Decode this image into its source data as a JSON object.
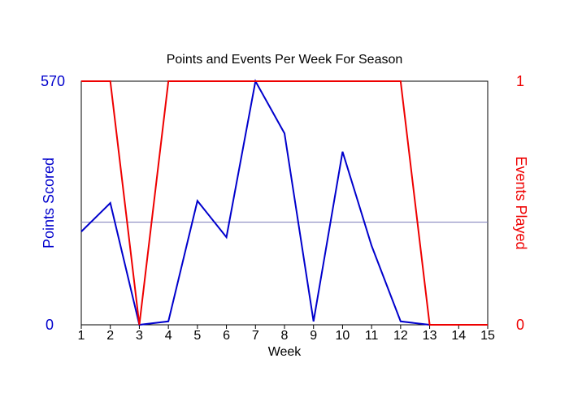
{
  "chart_data": {
    "type": "line",
    "title": "Points and Events Per Week For Season",
    "xlabel": "Week",
    "x": [
      1,
      2,
      3,
      4,
      5,
      6,
      7,
      8,
      9,
      10,
      11,
      12,
      13,
      14,
      15
    ],
    "xlim": [
      1,
      15
    ],
    "y_left": {
      "label": "Points Scored",
      "ylim": [
        0,
        570
      ],
      "ticks": [
        "0",
        "570"
      ],
      "color": "#0000cc"
    },
    "y_right": {
      "label": "Events Played",
      "ylim": [
        0,
        1
      ],
      "ticks": [
        "0",
        "1"
      ],
      "color": "#ee0000"
    },
    "reference_line": {
      "axis": "left",
      "value": 240,
      "color": "#7a7ab8"
    },
    "series": [
      {
        "axis": "left",
        "color": "#0000cc",
        "values": [
          218,
          285,
          0,
          8,
          290,
          205,
          570,
          448,
          8,
          405,
          185,
          8,
          0,
          0,
          0
        ]
      },
      {
        "axis": "right",
        "color": "#ee0000",
        "values": [
          1,
          1,
          0,
          1,
          1,
          1,
          1,
          1,
          1,
          1,
          1,
          1,
          0,
          0,
          0
        ]
      }
    ],
    "grid": false,
    "legend": "none"
  }
}
